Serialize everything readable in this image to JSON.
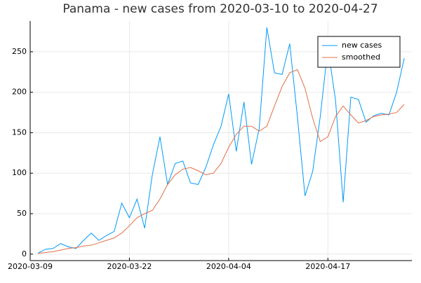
{
  "chart_data": {
    "type": "line",
    "title": "Panama - new cases from 2020-03-10 to 2020-04-27",
    "x": [
      "2020-03-10",
      "2020-03-11",
      "2020-03-12",
      "2020-03-13",
      "2020-03-14",
      "2020-03-15",
      "2020-03-16",
      "2020-03-17",
      "2020-03-18",
      "2020-03-19",
      "2020-03-20",
      "2020-03-21",
      "2020-03-22",
      "2020-03-23",
      "2020-03-24",
      "2020-03-25",
      "2020-03-26",
      "2020-03-27",
      "2020-03-28",
      "2020-03-29",
      "2020-03-30",
      "2020-03-31",
      "2020-04-01",
      "2020-04-02",
      "2020-04-03",
      "2020-04-04",
      "2020-04-05",
      "2020-04-06",
      "2020-04-07",
      "2020-04-08",
      "2020-04-09",
      "2020-04-10",
      "2020-04-11",
      "2020-04-12",
      "2020-04-13",
      "2020-04-14",
      "2020-04-15",
      "2020-04-16",
      "2020-04-17",
      "2020-04-18",
      "2020-04-19",
      "2020-04-20",
      "2020-04-21",
      "2020-04-22",
      "2020-04-23",
      "2020-04-24",
      "2020-04-25",
      "2020-04-26",
      "2020-04-27"
    ],
    "series": [
      {
        "name": "new cases",
        "color": "#009af9",
        "values": [
          1,
          6,
          7,
          13,
          9,
          7,
          17,
          26,
          17,
          23,
          28,
          63,
          45,
          68,
          32,
          98,
          145,
          86,
          112,
          115,
          88,
          86,
          107,
          135,
          158,
          198,
          127,
          188,
          111,
          155,
          280,
          224,
          222,
          260,
          170,
          72,
          102,
          170,
          255,
          190,
          64,
          194,
          191,
          163,
          171,
          174,
          172,
          200,
          242
        ]
      },
      {
        "name": "smoothed",
        "color": "#e26f46",
        "values": [
          1,
          2,
          3,
          5,
          7,
          8,
          10,
          11,
          14,
          17,
          20,
          26,
          35,
          45,
          50,
          54,
          68,
          86,
          98,
          105,
          107,
          103,
          98,
          100,
          112,
          132,
          148,
          158,
          158,
          152,
          158,
          183,
          207,
          224,
          228,
          205,
          168,
          139,
          145,
          170,
          183,
          172,
          162,
          165,
          170,
          172,
          173,
          175,
          185
        ]
      }
    ],
    "xlim": [
      "2020-03-09",
      "2020-04-28"
    ],
    "xticks": [
      "2020-03-09",
      "2020-03-22",
      "2020-04-04",
      "2020-04-17"
    ],
    "ylim": [
      -8,
      288
    ],
    "yticks": [
      0,
      50,
      100,
      150,
      200,
      250
    ],
    "grid": true,
    "legend": "top-right"
  }
}
